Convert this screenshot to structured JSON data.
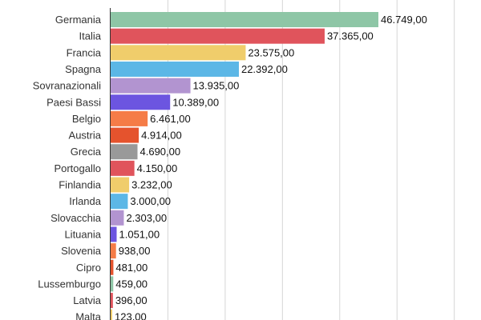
{
  "chart_data": {
    "type": "bar",
    "orientation": "horizontal",
    "categories": [
      "Germania",
      "Italia",
      "Francia",
      "Spagna",
      "Sovranazionali",
      "Paesi Bassi",
      "Belgio",
      "Austria",
      "Grecia",
      "Portogallo",
      "Finlandia",
      "Irlanda",
      "Slovacchia",
      "Lituania",
      "Slovenia",
      "Cipro",
      "Lussemburgo",
      "Latvia",
      "Malta"
    ],
    "values": [
      46749,
      37365,
      23575,
      22392,
      13935,
      10389,
      6461,
      4914,
      4690,
      4150,
      3232,
      3000,
      2303,
      1051,
      938,
      481,
      459,
      396,
      123
    ],
    "value_labels": [
      "46.749,00",
      "37.365,00",
      "23.575,00",
      "22.392,00",
      "13.935,00",
      "10.389,00",
      "6.461,00",
      "4.914,00",
      "4.690,00",
      "4.150,00",
      "3.232,00",
      "3.000,00",
      "2.303,00",
      "1.051,00",
      "938,00",
      "481,00",
      "459,00",
      "396,00",
      "123,00"
    ],
    "colors": [
      "#8ec6a6",
      "#e0545c",
      "#f0cd6b",
      "#5cb7e6",
      "#b294d0",
      "#6c55e0",
      "#f57c47",
      "#e5532d",
      "#999999",
      "#e0545c",
      "#f0cd6b",
      "#5cb7e6",
      "#b294d0",
      "#6c55e0",
      "#f57c47",
      "#e5532d",
      "#8ec6a6",
      "#e0545c",
      "#f0cd6b"
    ],
    "xlim": [
      0,
      60000
    ],
    "grid": true,
    "title": "",
    "xlabel": "",
    "ylabel": ""
  }
}
